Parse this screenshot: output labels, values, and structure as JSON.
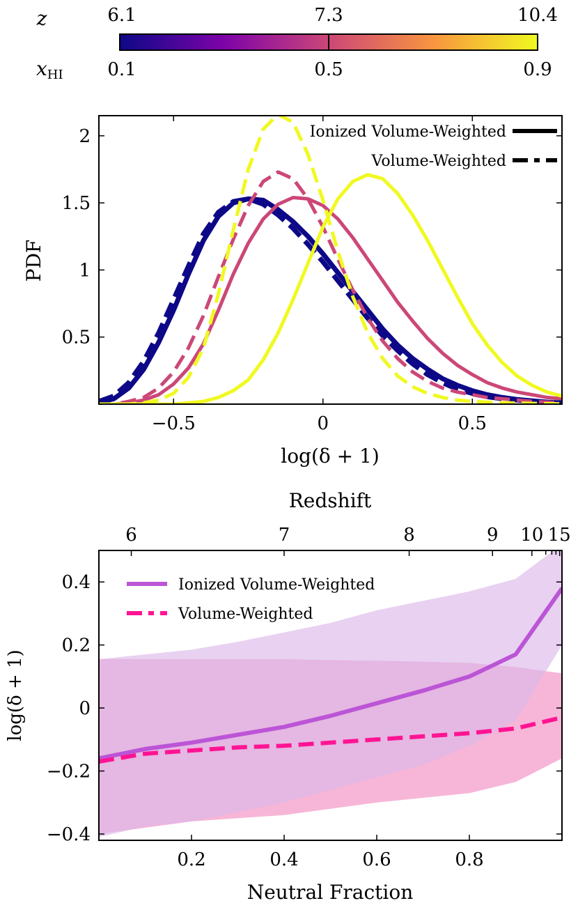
{
  "colorbar": {
    "z_label": "z",
    "z_ticks": [
      "6.1",
      "7.3",
      "10.4"
    ],
    "xhi_label_main": "x",
    "xhi_label_sub": "HI",
    "xhi_ticks": [
      "0.1",
      "0.5",
      "0.9"
    ],
    "colormap": [
      "#0d0887",
      "#7e03a8",
      "#cc4778",
      "#f89540",
      "#f0f921"
    ]
  },
  "chart_data": [
    {
      "type": "line",
      "title": "",
      "xlabel": "log(δ + 1)",
      "ylabel": "PDF",
      "xlim": [
        -0.75,
        0.8
      ],
      "ylim": [
        0,
        2.15
      ],
      "xticks": [
        -0.5,
        0,
        0.5
      ],
      "xtick_labels": [
        "−0.5",
        "0",
        "0.5"
      ],
      "yticks": [
        0.5,
        1,
        1.5,
        2
      ],
      "ytick_labels": [
        "0.5",
        "1",
        "1.5",
        "2"
      ],
      "legend": {
        "position": "top-right",
        "entries": [
          {
            "label": "Ionized Volume-Weighted",
            "style": "solid"
          },
          {
            "label": "Volume-Weighted",
            "style": "dashed"
          }
        ]
      },
      "series": [
        {
          "name": "xHI=0.1 Ionized Volume-Weighted",
          "color": "#0d0887",
          "style": "solid",
          "width": 7,
          "x": [
            -0.75,
            -0.7,
            -0.65,
            -0.6,
            -0.55,
            -0.5,
            -0.45,
            -0.4,
            -0.35,
            -0.3,
            -0.25,
            -0.2,
            -0.15,
            -0.1,
            -0.05,
            0,
            0.05,
            0.1,
            0.15,
            0.2,
            0.25,
            0.3,
            0.35,
            0.4,
            0.45,
            0.5,
            0.55,
            0.6,
            0.65,
            0.7,
            0.75,
            0.8
          ],
          "y": [
            0.01,
            0.04,
            0.12,
            0.26,
            0.46,
            0.7,
            0.97,
            1.22,
            1.4,
            1.5,
            1.53,
            1.52,
            1.45,
            1.36,
            1.25,
            1.12,
            0.98,
            0.84,
            0.7,
            0.56,
            0.44,
            0.34,
            0.26,
            0.19,
            0.14,
            0.1,
            0.07,
            0.05,
            0.035,
            0.025,
            0.015,
            0.01
          ]
        },
        {
          "name": "xHI=0.1 Volume-Weighted",
          "color": "#0d0887",
          "style": "dashed",
          "width": 7,
          "x": [
            -0.75,
            -0.7,
            -0.65,
            -0.6,
            -0.55,
            -0.5,
            -0.45,
            -0.4,
            -0.35,
            -0.3,
            -0.25,
            -0.2,
            -0.15,
            -0.1,
            -0.05,
            0,
            0.05,
            0.1,
            0.15,
            0.2,
            0.25,
            0.3,
            0.35,
            0.4,
            0.45,
            0.5,
            0.55,
            0.6,
            0.65,
            0.7,
            0.75,
            0.8
          ],
          "y": [
            0.02,
            0.06,
            0.16,
            0.32,
            0.53,
            0.78,
            1.03,
            1.27,
            1.43,
            1.51,
            1.53,
            1.49,
            1.41,
            1.31,
            1.19,
            1.06,
            0.92,
            0.78,
            0.64,
            0.51,
            0.4,
            0.3,
            0.22,
            0.16,
            0.11,
            0.08,
            0.055,
            0.04,
            0.03,
            0.02,
            0.012,
            0.008
          ]
        },
        {
          "name": "xHI=0.5 Ionized Volume-Weighted",
          "color": "#cc4778",
          "style": "solid",
          "width": 5,
          "x": [
            -0.75,
            -0.7,
            -0.65,
            -0.6,
            -0.55,
            -0.5,
            -0.45,
            -0.4,
            -0.35,
            -0.3,
            -0.25,
            -0.2,
            -0.15,
            -0.1,
            -0.05,
            0,
            0.05,
            0.1,
            0.15,
            0.2,
            0.25,
            0.3,
            0.35,
            0.4,
            0.45,
            0.5,
            0.55,
            0.6,
            0.65,
            0.7,
            0.75,
            0.8
          ],
          "y": [
            0.0,
            0.0,
            0.01,
            0.03,
            0.07,
            0.15,
            0.27,
            0.45,
            0.7,
            0.97,
            1.2,
            1.38,
            1.49,
            1.54,
            1.53,
            1.48,
            1.38,
            1.24,
            1.08,
            0.92,
            0.76,
            0.62,
            0.49,
            0.38,
            0.29,
            0.22,
            0.16,
            0.12,
            0.09,
            0.07,
            0.05,
            0.04
          ]
        },
        {
          "name": "xHI=0.5 Volume-Weighted",
          "color": "#cc4778",
          "style": "dashed",
          "width": 5,
          "x": [
            -0.75,
            -0.7,
            -0.65,
            -0.6,
            -0.55,
            -0.5,
            -0.45,
            -0.4,
            -0.35,
            -0.3,
            -0.25,
            -0.2,
            -0.15,
            -0.1,
            -0.05,
            0,
            0.05,
            0.1,
            0.15,
            0.2,
            0.25,
            0.3,
            0.35,
            0.4,
            0.45,
            0.5,
            0.55,
            0.6,
            0.65,
            0.7,
            0.75,
            0.8
          ],
          "y": [
            0.0,
            0.0,
            0.02,
            0.05,
            0.12,
            0.24,
            0.42,
            0.66,
            0.95,
            1.23,
            1.48,
            1.66,
            1.73,
            1.68,
            1.53,
            1.32,
            1.08,
            0.85,
            0.64,
            0.47,
            0.34,
            0.24,
            0.17,
            0.12,
            0.09,
            0.07,
            0.05,
            0.04,
            0.03,
            0.02,
            0.015,
            0.01
          ]
        },
        {
          "name": "xHI=0.9 Ionized Volume-Weighted",
          "color": "#f0f921",
          "style": "solid",
          "width": 5,
          "x": [
            -0.75,
            -0.7,
            -0.65,
            -0.6,
            -0.55,
            -0.5,
            -0.45,
            -0.4,
            -0.35,
            -0.3,
            -0.25,
            -0.2,
            -0.15,
            -0.1,
            -0.05,
            0,
            0.05,
            0.1,
            0.15,
            0.2,
            0.25,
            0.3,
            0.35,
            0.4,
            0.45,
            0.5,
            0.55,
            0.6,
            0.65,
            0.7,
            0.75,
            0.8
          ],
          "y": [
            0.0,
            0.0,
            0.0,
            0.0,
            0.0,
            0.0,
            0.01,
            0.02,
            0.05,
            0.1,
            0.18,
            0.33,
            0.53,
            0.78,
            1.05,
            1.32,
            1.53,
            1.66,
            1.71,
            1.68,
            1.57,
            1.41,
            1.22,
            1.01,
            0.8,
            0.6,
            0.44,
            0.31,
            0.21,
            0.14,
            0.09,
            0.06
          ]
        },
        {
          "name": "xHI=0.9 Volume-Weighted",
          "color": "#f0f921",
          "style": "dashed",
          "width": 5,
          "x": [
            -0.75,
            -0.7,
            -0.65,
            -0.6,
            -0.55,
            -0.5,
            -0.45,
            -0.4,
            -0.35,
            -0.3,
            -0.25,
            -0.2,
            -0.15,
            -0.1,
            -0.05,
            0,
            0.05,
            0.1,
            0.15,
            0.2,
            0.25,
            0.3,
            0.35,
            0.4,
            0.45,
            0.5,
            0.55,
            0.6,
            0.65,
            0.7,
            0.75,
            0.8
          ],
          "y": [
            0.0,
            0.0,
            0.0,
            0.01,
            0.03,
            0.08,
            0.2,
            0.42,
            0.82,
            1.3,
            1.75,
            2.05,
            2.16,
            2.1,
            1.86,
            1.52,
            1.14,
            0.8,
            0.53,
            0.34,
            0.21,
            0.13,
            0.08,
            0.05,
            0.03,
            0.02,
            0.015,
            0.01,
            0.008,
            0.005,
            0.003,
            0.002
          ]
        }
      ]
    },
    {
      "type": "line",
      "title": "",
      "xlabel": "Neutral Fraction",
      "ylabel": "log(δ + 1)",
      "top_axis_label": "Redshift",
      "xlim": [
        0,
        1
      ],
      "ylim": [
        -0.42,
        0.5
      ],
      "xticks": [
        0.2,
        0.4,
        0.6,
        0.8
      ],
      "xtick_labels": [
        "0.2",
        "0.4",
        "0.6",
        "0.8"
      ],
      "yticks": [
        -0.4,
        -0.2,
        0,
        0.2,
        0.4
      ],
      "ytick_labels": [
        "−0.4",
        "−0.2",
        "0",
        "0.2",
        "0.4"
      ],
      "top_ticks": {
        "labels": [
          "6",
          "7",
          "8",
          "9",
          "10",
          "15"
        ],
        "neutral_fraction_positions": [
          0.07,
          0.4,
          0.67,
          0.85,
          0.935,
          0.995
        ],
        "minor_positions": [
          0.965,
          0.978,
          0.987
        ]
      },
      "legend": {
        "position": "top-left",
        "entries": [
          {
            "label": "Ionized Volume-Weighted",
            "color": "#bb55d6",
            "style": "solid"
          },
          {
            "label": "Volume-Weighted",
            "color": "#ff1493",
            "style": "dashed"
          }
        ]
      },
      "series": [
        {
          "name": "Ionized Volume-Weighted",
          "color": "#bb55d6",
          "style": "solid",
          "width": 6,
          "x": [
            0.0,
            0.1,
            0.2,
            0.3,
            0.4,
            0.5,
            0.6,
            0.7,
            0.8,
            0.9,
            1.0
          ],
          "y": [
            -0.16,
            -0.13,
            -0.11,
            -0.085,
            -0.06,
            -0.025,
            0.015,
            0.055,
            0.1,
            0.17,
            0.38
          ],
          "band_lower": [
            -0.41,
            -0.375,
            -0.36,
            -0.33,
            -0.3,
            -0.26,
            -0.22,
            -0.18,
            -0.12,
            -0.04,
            0.2
          ],
          "band_upper": [
            0.155,
            0.17,
            0.185,
            0.21,
            0.24,
            0.27,
            0.31,
            0.34,
            0.37,
            0.41,
            0.52
          ],
          "band_color": "#dcb8ea"
        },
        {
          "name": "Volume-Weighted",
          "color": "#ff1493",
          "style": "dashed",
          "width": 6,
          "x": [
            0.0,
            0.1,
            0.2,
            0.3,
            0.4,
            0.5,
            0.6,
            0.7,
            0.8,
            0.9,
            1.0
          ],
          "y": [
            -0.17,
            -0.145,
            -0.135,
            -0.125,
            -0.12,
            -0.11,
            -0.1,
            -0.09,
            -0.08,
            -0.065,
            -0.03
          ],
          "band_lower": [
            -0.4,
            -0.38,
            -0.36,
            -0.35,
            -0.34,
            -0.32,
            -0.3,
            -0.285,
            -0.27,
            -0.235,
            -0.16
          ],
          "band_upper": [
            0.155,
            0.155,
            0.155,
            0.155,
            0.155,
            0.152,
            0.15,
            0.147,
            0.143,
            0.13,
            0.11
          ],
          "band_color": "#f07ab8"
        }
      ]
    }
  ]
}
